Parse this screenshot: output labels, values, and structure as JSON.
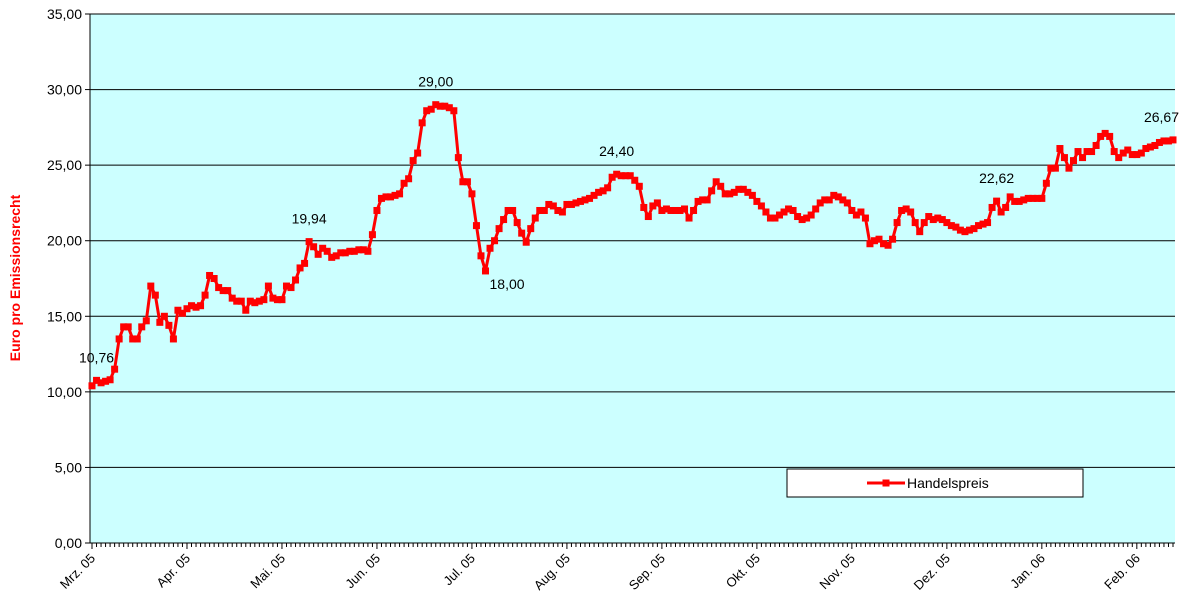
{
  "chart_data": {
    "type": "line",
    "ylabel": "Euro pro Emissionsrecht",
    "ylim": [
      0,
      35
    ],
    "yticks": [
      {
        "value": 0,
        "label": "0,00"
      },
      {
        "value": 5,
        "label": "5,00"
      },
      {
        "value": 10,
        "label": "10,00"
      },
      {
        "value": 15,
        "label": "15,00"
      },
      {
        "value": 20,
        "label": "20,00"
      },
      {
        "value": 25,
        "label": "25,00"
      },
      {
        "value": 30,
        "label": "30,00"
      },
      {
        "value": 35,
        "label": "35,00"
      }
    ],
    "grid": true,
    "background": "#ccffff",
    "legend": "lower right",
    "categories": [
      "Mrz. 05",
      null,
      null,
      null,
      null,
      null,
      null,
      null,
      null,
      null,
      null,
      null,
      null,
      null,
      null,
      null,
      null,
      null,
      null,
      null,
      null,
      "Apr. 05",
      null,
      null,
      null,
      null,
      null,
      null,
      null,
      null,
      null,
      null,
      null,
      null,
      null,
      null,
      null,
      null,
      null,
      null,
      null,
      null,
      "Mai. 05",
      null,
      null,
      null,
      null,
      null,
      null,
      null,
      null,
      null,
      null,
      null,
      null,
      null,
      null,
      null,
      null,
      null,
      null,
      null,
      null,
      "Jun. 05",
      null,
      null,
      null,
      null,
      null,
      null,
      null,
      null,
      null,
      null,
      null,
      null,
      null,
      null,
      null,
      null,
      null,
      null,
      null,
      null,
      "Jul. 05",
      null,
      null,
      null,
      null,
      null,
      null,
      null,
      null,
      null,
      null,
      null,
      null,
      null,
      null,
      null,
      null,
      null,
      null,
      null,
      null,
      "Aug. 05",
      null,
      null,
      null,
      null,
      null,
      null,
      null,
      null,
      null,
      null,
      null,
      null,
      null,
      null,
      null,
      null,
      null,
      null,
      null,
      null,
      "Sep. 05",
      null,
      null,
      null,
      null,
      null,
      null,
      null,
      null,
      null,
      null,
      null,
      null,
      null,
      null,
      null,
      null,
      null,
      null,
      null,
      null,
      "Okt. 05",
      null,
      null,
      null,
      null,
      null,
      null,
      null,
      null,
      null,
      null,
      null,
      null,
      null,
      null,
      null,
      null,
      null,
      null,
      null,
      null,
      "Nov. 05",
      null,
      null,
      null,
      null,
      null,
      null,
      null,
      null,
      null,
      null,
      null,
      null,
      null,
      null,
      null,
      null,
      null,
      null,
      null,
      null,
      "Dez. 05",
      null,
      null,
      null,
      null,
      null,
      null,
      null,
      null,
      null,
      null,
      null,
      null,
      null,
      null,
      null,
      null,
      null,
      null,
      null,
      null,
      "Jan. 06",
      null,
      null,
      null,
      null,
      null,
      null,
      null,
      null,
      null,
      null,
      null,
      null,
      null,
      null,
      null,
      null,
      null,
      null,
      null,
      null,
      "Feb. 06",
      null,
      null,
      null,
      null,
      null,
      null,
      null,
      null
    ],
    "series": [
      {
        "name": "Handelspreis",
        "color": "#ff0000",
        "values": [
          10.4,
          10.76,
          10.6,
          10.7,
          10.8,
          11.5,
          13.5,
          14.3,
          14.3,
          13.5,
          13.5,
          14.3,
          14.7,
          17.0,
          16.4,
          14.6,
          15.0,
          14.4,
          13.5,
          15.4,
          15.2,
          15.5,
          15.7,
          15.6,
          15.7,
          16.4,
          17.7,
          17.5,
          16.9,
          16.7,
          16.7,
          16.2,
          16.0,
          16.0,
          15.4,
          16.0,
          15.9,
          16.0,
          16.1,
          17.0,
          16.2,
          16.1,
          16.1,
          17.0,
          16.9,
          17.4,
          18.2,
          18.5,
          19.94,
          19.6,
          19.1,
          19.5,
          19.3,
          18.9,
          19.0,
          19.2,
          19.2,
          19.3,
          19.3,
          19.4,
          19.4,
          19.3,
          20.4,
          22.0,
          22.8,
          22.9,
          22.9,
          23.0,
          23.1,
          23.8,
          24.1,
          25.3,
          25.8,
          27.8,
          28.6,
          28.7,
          29.0,
          28.9,
          28.9,
          28.8,
          28.6,
          25.5,
          23.9,
          23.9,
          23.1,
          21.0,
          19.0,
          18.0,
          19.5,
          20.0,
          20.8,
          21.4,
          22.0,
          22.0,
          21.2,
          20.5,
          19.9,
          20.8,
          21.5,
          22.0,
          22.0,
          22.4,
          22.3,
          22.0,
          21.9,
          22.4,
          22.4,
          22.5,
          22.6,
          22.7,
          22.8,
          23.0,
          23.2,
          23.3,
          23.5,
          24.2,
          24.4,
          24.3,
          24.3,
          24.3,
          24.0,
          23.6,
          22.2,
          21.6,
          22.3,
          22.5,
          22.0,
          22.1,
          22.0,
          22.0,
          22.0,
          22.1,
          21.5,
          22.0,
          22.6,
          22.7,
          22.7,
          23.3,
          23.9,
          23.6,
          23.1,
          23.1,
          23.2,
          23.4,
          23.4,
          23.2,
          23.0,
          22.6,
          22.3,
          21.9,
          21.5,
          21.5,
          21.7,
          21.9,
          22.1,
          22.0,
          21.6,
          21.4,
          21.5,
          21.7,
          22.1,
          22.5,
          22.7,
          22.7,
          23.0,
          22.9,
          22.7,
          22.5,
          22.0,
          21.7,
          21.9,
          21.5,
          19.8,
          20.0,
          20.1,
          19.8,
          19.7,
          20.1,
          21.2,
          22.0,
          22.1,
          21.9,
          21.2,
          20.6,
          21.2,
          21.6,
          21.4,
          21.5,
          21.4,
          21.2,
          21.0,
          20.9,
          20.7,
          20.6,
          20.7,
          20.8,
          21.0,
          21.1,
          21.2,
          22.2,
          22.62,
          21.9,
          22.2,
          22.9,
          22.6,
          22.6,
          22.7,
          22.8,
          22.8,
          22.8,
          22.8,
          23.8,
          24.8,
          24.8,
          26.1,
          25.5,
          24.8,
          25.3,
          25.9,
          25.5,
          25.9,
          25.9,
          26.3,
          26.9,
          27.1,
          26.9,
          25.9,
          25.5,
          25.8,
          26.0,
          25.7,
          25.7,
          25.8,
          26.1,
          26.2,
          26.3,
          26.5,
          26.6,
          26.6,
          26.67
        ],
        "value_labels": [
          null,
          "10,76",
          null,
          null,
          null,
          null,
          null,
          null,
          null,
          null,
          null,
          null,
          null,
          null,
          null,
          null,
          null,
          null,
          null,
          null,
          null,
          null,
          null,
          null,
          null,
          null,
          null,
          null,
          null,
          null,
          null,
          null,
          null,
          null,
          null,
          null,
          null,
          null,
          null,
          null,
          null,
          null,
          null,
          null,
          null,
          null,
          null,
          null,
          "19,94",
          null,
          null,
          null,
          null,
          null,
          null,
          null,
          null,
          null,
          null,
          null,
          null,
          null,
          null,
          null,
          null,
          null,
          null,
          null,
          null,
          null,
          null,
          null,
          null,
          null,
          null,
          null,
          "29,00",
          null,
          null,
          null,
          null,
          null,
          null,
          null,
          null,
          null,
          null,
          "18,00",
          null,
          null,
          null,
          null,
          null,
          null,
          null,
          null,
          null,
          null,
          null,
          null,
          null,
          null,
          null,
          null,
          null,
          null,
          null,
          null,
          null,
          null,
          null,
          null,
          null,
          null,
          null,
          null,
          "24,40",
          null,
          null,
          null,
          null,
          null,
          null,
          null,
          null,
          null,
          null,
          null,
          null,
          null,
          null,
          null,
          null,
          null,
          null,
          null,
          null,
          null,
          null,
          null,
          null,
          null,
          null,
          null,
          null,
          null,
          null,
          null,
          null,
          null,
          null,
          null,
          null,
          null,
          null,
          null,
          null,
          null,
          null,
          null,
          null,
          null,
          null,
          null,
          null,
          null,
          null,
          null,
          null,
          null,
          null,
          null,
          null,
          null,
          null,
          null,
          null,
          null,
          null,
          null,
          null,
          null,
          null,
          null,
          null,
          null,
          null,
          null,
          null,
          null,
          null,
          null,
          null,
          null,
          null,
          null,
          null,
          null,
          null,
          null,
          "22,62",
          null,
          null,
          null,
          null,
          null,
          null,
          null,
          null,
          null,
          null,
          null,
          null,
          null,
          null,
          null,
          null,
          null,
          null,
          null,
          null,
          null,
          null,
          null,
          null,
          null,
          null,
          null,
          null,
          null,
          null,
          null,
          null,
          null,
          null,
          null,
          null,
          null,
          null,
          "26,67"
        ]
      }
    ]
  }
}
